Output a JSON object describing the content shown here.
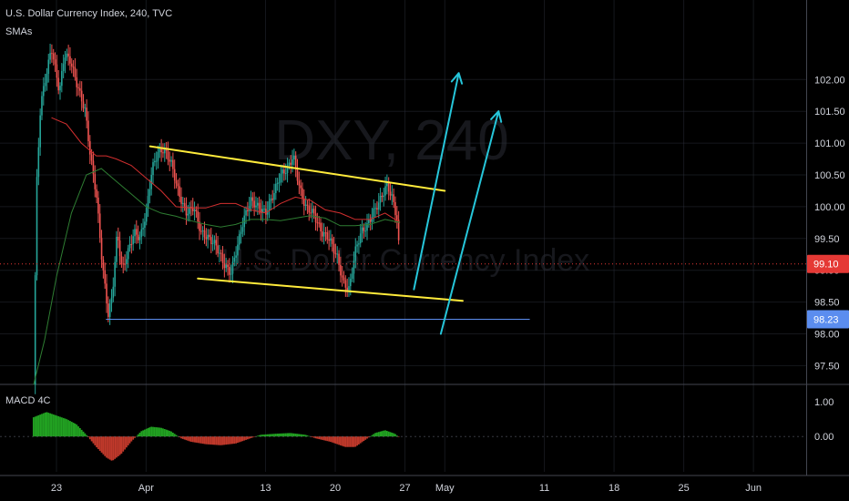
{
  "header": {
    "title": "U.S. Dollar Currency Index, 240, TVC",
    "indicator": "SMAs"
  },
  "watermark": {
    "symbol": "DXY, 240",
    "name": "U.S. Dollar Currency Index"
  },
  "macd_pane": {
    "label": "MACD 4C"
  },
  "colors": {
    "background": "#000000",
    "up_candle": "#26a69a",
    "down_candle": "#ef5350",
    "sma_fast": "#d32f2f",
    "sma_slow": "#2e7d32",
    "channel_lines": "#ffeb3b",
    "arrows": "#26c6da",
    "support_line": "#5b8def",
    "price_dotted": "#e53935",
    "macd_up": "#22a322",
    "macd_down": "#c0392b",
    "grid": "#2a2e39"
  },
  "chart_data": {
    "type": "candlestick",
    "price_axis": {
      "ticks": [
        "102.00",
        "101.50",
        "101.00",
        "100.50",
        "100.00",
        "99.50",
        "99.00",
        "98.50",
        "98.00",
        "97.50"
      ],
      "range": [
        97.2,
        102.4
      ]
    },
    "macd_axis": {
      "ticks": [
        "1.00",
        "0.00"
      ],
      "range": [
        -0.8,
        1.3
      ]
    },
    "time_axis": {
      "ticks": [
        {
          "label": "23",
          "day": 0
        },
        {
          "label": "Apr",
          "day": 9
        },
        {
          "label": "13",
          "day": 21
        },
        {
          "label": "20",
          "day": 28
        },
        {
          "label": "27",
          "day": 35
        },
        {
          "label": "May",
          "day": 39
        },
        {
          "label": "11",
          "day": 49
        },
        {
          "label": "18",
          "day": 56
        },
        {
          "label": "25",
          "day": 63
        },
        {
          "label": "Jun",
          "day": 70
        }
      ]
    },
    "price_path": [
      [
        -2.3,
        97.2
      ],
      [
        -2.0,
        100.3
      ],
      [
        -1.6,
        101.6
      ],
      [
        -1.0,
        102.1
      ],
      [
        -0.5,
        102.5
      ],
      [
        0.3,
        101.8
      ],
      [
        0.8,
        102.4
      ],
      [
        1.4,
        102.3
      ],
      [
        2.1,
        101.9
      ],
      [
        2.9,
        101.5
      ],
      [
        3.4,
        100.8
      ],
      [
        4.0,
        100.2
      ],
      [
        4.6,
        99.1
      ],
      [
        5.2,
        98.3
      ],
      [
        5.6,
        98.6
      ],
      [
        6.1,
        99.6
      ],
      [
        6.6,
        99.0
      ],
      [
        7.2,
        99.3
      ],
      [
        7.8,
        99.6
      ],
      [
        8.4,
        99.5
      ],
      [
        9.0,
        99.9
      ],
      [
        9.6,
        100.6
      ],
      [
        10.2,
        100.85
      ],
      [
        10.8,
        100.9
      ],
      [
        11.5,
        100.7
      ],
      [
        12.3,
        100.2
      ],
      [
        13.0,
        99.9
      ],
      [
        13.8,
        100.0
      ],
      [
        14.5,
        99.6
      ],
      [
        15.3,
        99.5
      ],
      [
        16.0,
        99.4
      ],
      [
        16.8,
        99.1
      ],
      [
        17.5,
        98.95
      ],
      [
        18.2,
        99.4
      ],
      [
        18.8,
        99.8
      ],
      [
        19.5,
        100.1
      ],
      [
        20.2,
        100.0
      ],
      [
        21.0,
        99.9
      ],
      [
        21.8,
        100.2
      ],
      [
        22.5,
        100.5
      ],
      [
        23.2,
        100.6
      ],
      [
        23.8,
        100.8
      ],
      [
        24.4,
        100.3
      ],
      [
        25.0,
        100.0
      ],
      [
        25.8,
        99.9
      ],
      [
        26.6,
        99.6
      ],
      [
        27.4,
        99.5
      ],
      [
        28.2,
        99.2
      ],
      [
        28.8,
        98.8
      ],
      [
        29.4,
        98.7
      ],
      [
        30.0,
        99.3
      ],
      [
        30.6,
        99.6
      ],
      [
        31.2,
        99.7
      ],
      [
        31.8,
        99.9
      ],
      [
        32.5,
        100.1
      ],
      [
        33.2,
        100.35
      ],
      [
        33.8,
        100.1
      ],
      [
        34.2,
        99.8
      ],
      [
        34.5,
        99.1
      ]
    ],
    "sma_fast": [
      [
        -0.5,
        101.4
      ],
      [
        1.0,
        101.3
      ],
      [
        2.5,
        101.0
      ],
      [
        4.0,
        100.8
      ],
      [
        5.0,
        100.8
      ],
      [
        6.0,
        100.75
      ],
      [
        7.5,
        100.65
      ],
      [
        9.0,
        100.45
      ],
      [
        10.5,
        100.25
      ],
      [
        12.0,
        100.0
      ],
      [
        13.5,
        99.98
      ],
      [
        15.0,
        99.98
      ],
      [
        16.5,
        100.05
      ],
      [
        18.0,
        100.05
      ],
      [
        19.5,
        99.95
      ],
      [
        21.0,
        99.9
      ],
      [
        22.5,
        100.05
      ],
      [
        24.0,
        100.15
      ],
      [
        25.5,
        100.1
      ],
      [
        27.0,
        99.95
      ],
      [
        28.5,
        99.9
      ],
      [
        30.0,
        99.8
      ],
      [
        31.5,
        99.8
      ],
      [
        33.0,
        99.9
      ],
      [
        34.5,
        99.75
      ]
    ],
    "sma_slow": [
      [
        -2.3,
        97.2
      ],
      [
        -1.2,
        97.9
      ],
      [
        0.0,
        98.9
      ],
      [
        1.5,
        99.9
      ],
      [
        3.0,
        100.5
      ],
      [
        4.5,
        100.6
      ],
      [
        6.0,
        100.4
      ],
      [
        7.5,
        100.2
      ],
      [
        9.0,
        100.0
      ],
      [
        10.5,
        99.9
      ],
      [
        12.0,
        99.85
      ],
      [
        13.5,
        99.78
      ],
      [
        15.0,
        99.72
      ],
      [
        16.5,
        99.68
      ],
      [
        18.0,
        99.72
      ],
      [
        19.5,
        99.8
      ],
      [
        21.0,
        99.8
      ],
      [
        22.5,
        99.78
      ],
      [
        24.0,
        99.82
      ],
      [
        25.5,
        99.86
      ],
      [
        27.0,
        99.82
      ],
      [
        28.5,
        99.7
      ],
      [
        30.0,
        99.7
      ],
      [
        31.5,
        99.72
      ],
      [
        33.0,
        99.8
      ],
      [
        34.5,
        99.75
      ]
    ],
    "drawings": {
      "channel_upper": {
        "from": [
          9.4,
          100.95
        ],
        "to": [
          39.0,
          100.25
        ]
      },
      "channel_lower": {
        "from": [
          14.2,
          98.87
        ],
        "to": [
          40.8,
          98.52
        ]
      },
      "support_line": {
        "from": [
          5.0,
          98.23
        ],
        "to": [
          47.5,
          98.23
        ]
      },
      "arrow_1": {
        "from": [
          35.9,
          98.7
        ],
        "to": [
          40.4,
          102.1
        ]
      },
      "arrow_2": {
        "from": [
          38.6,
          98.0
        ],
        "to": [
          44.4,
          101.5
        ]
      }
    },
    "markers": [
      {
        "label": "99.10",
        "value": 99.1,
        "color": "#e53935"
      },
      {
        "label": "98.23",
        "value": 98.23,
        "color": "#5b8def"
      }
    ],
    "macd_histogram": [
      [
        -2.3,
        0.55
      ],
      [
        -1.0,
        0.7
      ],
      [
        0.0,
        0.6
      ],
      [
        1.0,
        0.5
      ],
      [
        2.0,
        0.35
      ],
      [
        3.0,
        0.05
      ],
      [
        4.0,
        -0.3
      ],
      [
        5.0,
        -0.6
      ],
      [
        5.6,
        -0.7
      ],
      [
        6.5,
        -0.5
      ],
      [
        7.5,
        -0.15
      ],
      [
        8.5,
        0.15
      ],
      [
        9.5,
        0.28
      ],
      [
        10.5,
        0.25
      ],
      [
        11.5,
        0.15
      ],
      [
        12.5,
        -0.05
      ],
      [
        13.5,
        -0.15
      ],
      [
        15.0,
        -0.22
      ],
      [
        16.5,
        -0.25
      ],
      [
        18.0,
        -0.2
      ],
      [
        19.5,
        -0.05
      ],
      [
        20.5,
        0.05
      ],
      [
        22.0,
        0.08
      ],
      [
        23.5,
        0.1
      ],
      [
        25.0,
        0.05
      ],
      [
        26.0,
        -0.05
      ],
      [
        27.5,
        -0.15
      ],
      [
        29.0,
        -0.3
      ],
      [
        30.0,
        -0.3
      ],
      [
        31.0,
        -0.1
      ],
      [
        32.0,
        0.1
      ],
      [
        33.0,
        0.18
      ],
      [
        34.0,
        0.08
      ],
      [
        34.5,
        -0.05
      ]
    ]
  }
}
